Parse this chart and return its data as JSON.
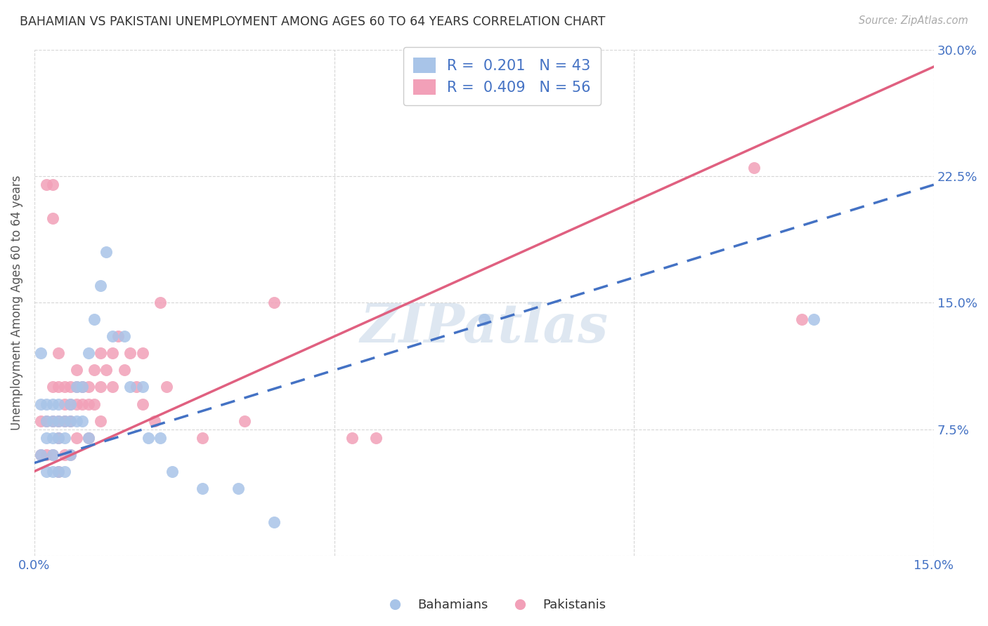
{
  "title": "BAHAMIAN VS PAKISTANI UNEMPLOYMENT AMONG AGES 60 TO 64 YEARS CORRELATION CHART",
  "source": "Source: ZipAtlas.com",
  "ylabel": "Unemployment Among Ages 60 to 64 years",
  "xlim": [
    0.0,
    0.15
  ],
  "ylim": [
    0.0,
    0.3
  ],
  "xticks": [
    0.0,
    0.05,
    0.1,
    0.15
  ],
  "xticklabels": [
    "0.0%",
    "",
    "",
    "15.0%"
  ],
  "yticks": [
    0.0,
    0.075,
    0.15,
    0.225,
    0.3
  ],
  "yticklabels": [
    "",
    "7.5%",
    "15.0%",
    "22.5%",
    "30.0%"
  ],
  "background_color": "#ffffff",
  "grid_color": "#cccccc",
  "watermark": "ZIPatlas",
  "bahamian_color": "#a8c4e8",
  "pakistani_color": "#f2a0b8",
  "bahamian_line_color": "#4472c4",
  "pakistani_line_color": "#e06080",
  "tick_color": "#4472c4",
  "bahamian_R": 0.201,
  "bahamian_N": 43,
  "pakistani_R": 0.409,
  "pakistani_N": 56,
  "bahamian_intercept": 0.055,
  "bahamian_slope": 1.1,
  "pakistani_intercept": 0.05,
  "pakistani_slope": 1.6,
  "bahamian_x": [
    0.001,
    0.001,
    0.001,
    0.002,
    0.002,
    0.002,
    0.002,
    0.003,
    0.003,
    0.003,
    0.003,
    0.003,
    0.004,
    0.004,
    0.004,
    0.004,
    0.005,
    0.005,
    0.005,
    0.006,
    0.006,
    0.006,
    0.007,
    0.007,
    0.008,
    0.008,
    0.009,
    0.009,
    0.01,
    0.011,
    0.012,
    0.013,
    0.015,
    0.016,
    0.018,
    0.019,
    0.021,
    0.023,
    0.028,
    0.034,
    0.04,
    0.075,
    0.13
  ],
  "bahamian_y": [
    0.12,
    0.09,
    0.06,
    0.09,
    0.08,
    0.07,
    0.05,
    0.09,
    0.08,
    0.07,
    0.06,
    0.05,
    0.09,
    0.08,
    0.07,
    0.05,
    0.08,
    0.07,
    0.05,
    0.09,
    0.08,
    0.06,
    0.1,
    0.08,
    0.1,
    0.08,
    0.12,
    0.07,
    0.14,
    0.16,
    0.18,
    0.13,
    0.13,
    0.1,
    0.1,
    0.07,
    0.07,
    0.05,
    0.04,
    0.04,
    0.02,
    0.14,
    0.14
  ],
  "pakistani_x": [
    0.001,
    0.001,
    0.002,
    0.002,
    0.002,
    0.003,
    0.003,
    0.003,
    0.003,
    0.003,
    0.004,
    0.004,
    0.004,
    0.004,
    0.004,
    0.005,
    0.005,
    0.005,
    0.005,
    0.006,
    0.006,
    0.006,
    0.006,
    0.007,
    0.007,
    0.007,
    0.007,
    0.008,
    0.008,
    0.009,
    0.009,
    0.009,
    0.01,
    0.01,
    0.011,
    0.011,
    0.011,
    0.012,
    0.013,
    0.013,
    0.014,
    0.015,
    0.016,
    0.017,
    0.018,
    0.018,
    0.02,
    0.021,
    0.022,
    0.028,
    0.035,
    0.04,
    0.053,
    0.057,
    0.12,
    0.128
  ],
  "pakistani_y": [
    0.08,
    0.06,
    0.22,
    0.08,
    0.06,
    0.22,
    0.2,
    0.1,
    0.08,
    0.06,
    0.12,
    0.1,
    0.08,
    0.07,
    0.05,
    0.1,
    0.09,
    0.08,
    0.06,
    0.1,
    0.09,
    0.08,
    0.06,
    0.11,
    0.1,
    0.09,
    0.07,
    0.1,
    0.09,
    0.1,
    0.09,
    0.07,
    0.11,
    0.09,
    0.12,
    0.1,
    0.08,
    0.11,
    0.12,
    0.1,
    0.13,
    0.11,
    0.12,
    0.1,
    0.12,
    0.09,
    0.08,
    0.15,
    0.1,
    0.07,
    0.08,
    0.15,
    0.07,
    0.07,
    0.23,
    0.14
  ]
}
